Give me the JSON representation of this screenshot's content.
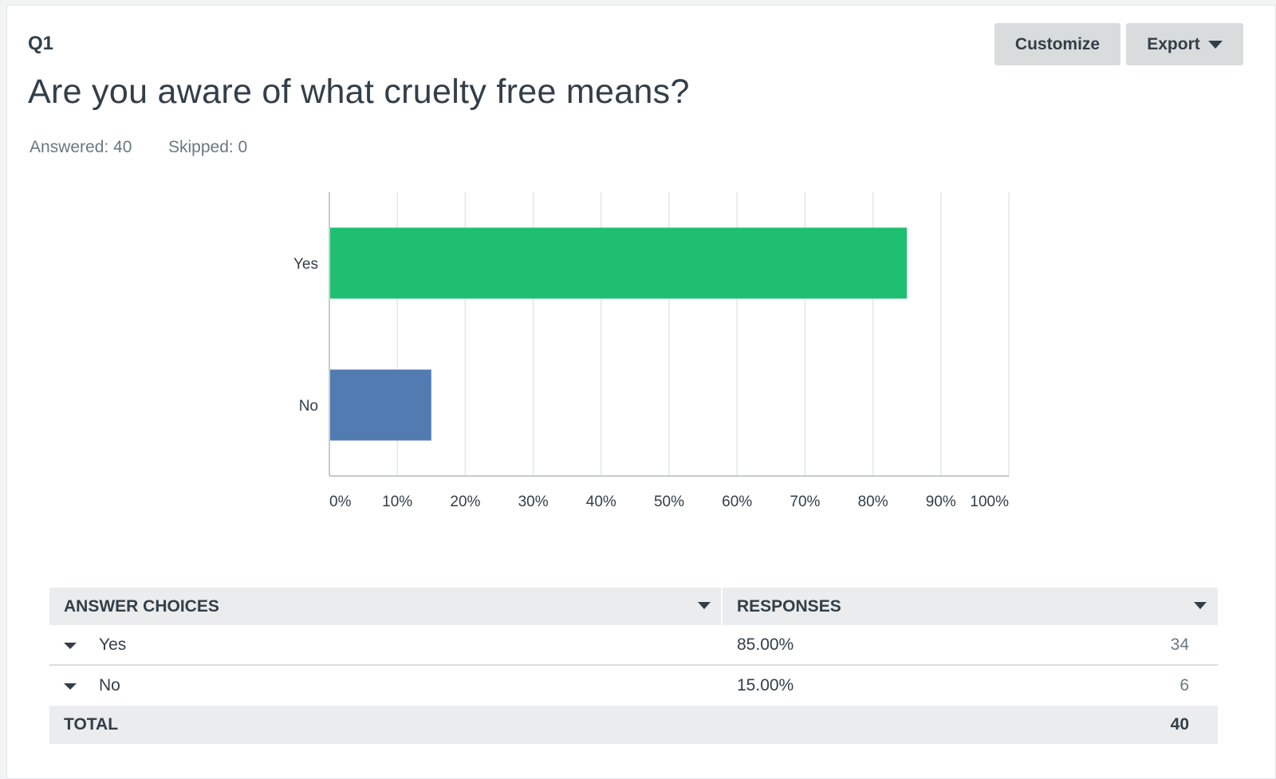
{
  "question": {
    "number": "Q1",
    "title": "Are you aware of what cruelty free means?",
    "answered": "Answered: 40",
    "skipped": "Skipped: 0"
  },
  "toolbar": {
    "customize_label": "Customize",
    "export_label": "Export"
  },
  "colors": {
    "yes_bar": "#1fbf71",
    "no_bar": "#527bb2"
  },
  "chart_data": {
    "type": "bar",
    "orientation": "horizontal",
    "categories": [
      "Yes",
      "No"
    ],
    "values": [
      85,
      15
    ],
    "xlim": [
      0,
      100
    ],
    "xticks": [
      "0%",
      "10%",
      "20%",
      "30%",
      "40%",
      "50%",
      "60%",
      "70%",
      "80%",
      "90%",
      "100%"
    ],
    "grid": true,
    "title": "",
    "xlabel": "",
    "ylabel": ""
  },
  "table": {
    "headers": {
      "choices": "ANSWER CHOICES",
      "responses": "RESPONSES"
    },
    "rows": [
      {
        "label": "Yes",
        "percent": "85.00%",
        "count": "34"
      },
      {
        "label": "No",
        "percent": "15.00%",
        "count": "6"
      }
    ],
    "total_label": "TOTAL",
    "total_value": "40"
  }
}
